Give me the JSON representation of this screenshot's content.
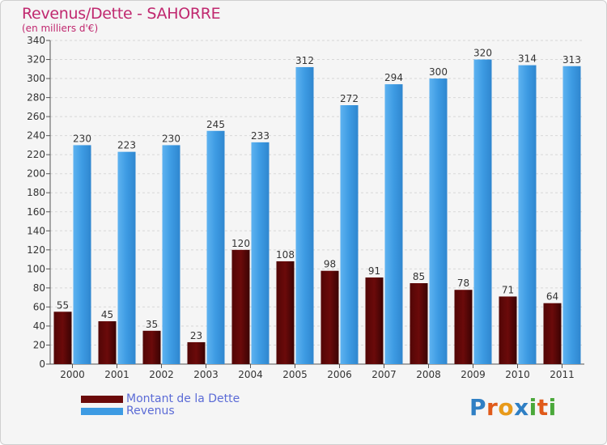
{
  "header": {
    "title": "Revenus/Dette - SAHORRE",
    "subtitle": "(en milliers d'€)"
  },
  "colors": {
    "dette": "#6b0a0a",
    "revenus": "#3d9be3",
    "title": "#c0286f",
    "legend_text": "#5b6bd6"
  },
  "legend": {
    "dette_label": "Montant de la Dette",
    "revenus_label": "Revenus"
  },
  "logo": {
    "text": "Proxiti",
    "letters": [
      {
        "char": "P",
        "color": "#2f7fc4"
      },
      {
        "char": "r",
        "color": "#e05a1a"
      },
      {
        "char": "o",
        "color": "#e89a1a"
      },
      {
        "char": "x",
        "color": "#2f7fc4"
      },
      {
        "char": "i",
        "color": "#4aa83a"
      },
      {
        "char": "t",
        "color": "#e05a1a"
      },
      {
        "char": "i",
        "color": "#4aa83a"
      }
    ]
  },
  "chart_data": {
    "type": "bar",
    "title": "Revenus/Dette - SAHORRE",
    "ylabel": "(en milliers d'€)",
    "xlabel": "",
    "categories": [
      "2000",
      "2001",
      "2002",
      "2003",
      "2004",
      "2005",
      "2006",
      "2007",
      "2008",
      "2009",
      "2010",
      "2011"
    ],
    "series": [
      {
        "name": "Montant de la Dette",
        "values": [
          55,
          45,
          35,
          23,
          120,
          108,
          98,
          91,
          85,
          78,
          71,
          64
        ]
      },
      {
        "name": "Revenus",
        "values": [
          230,
          223,
          230,
          245,
          233,
          312,
          272,
          294,
          300,
          320,
          314,
          313
        ]
      }
    ],
    "ylim": [
      0,
      340
    ],
    "ytick_step": 20,
    "grid": true,
    "legend_position": "bottom-left"
  }
}
